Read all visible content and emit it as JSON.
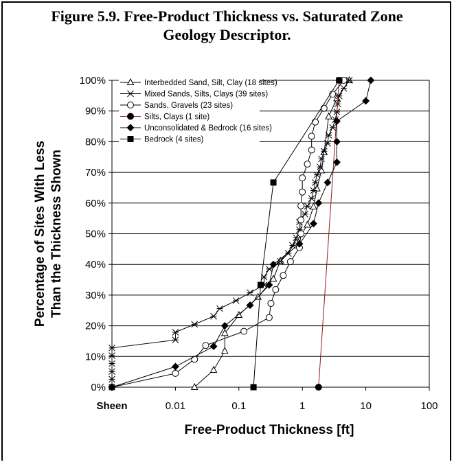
{
  "figure": {
    "title_line1": "Figure 5.9.  Free-Product Thickness vs. Saturated Zone",
    "title_line2": "Geology Descriptor."
  },
  "chart_data": {
    "type": "line",
    "xlabel": "Free-Product Thickness [ft]",
    "ylabel_line1": "Percentage of Sites With Less",
    "ylabel_line2": "Than the Thickness Shown",
    "x_scale": "log",
    "x_ticks": [
      {
        "value": 0.001,
        "label": "Sheen"
      },
      {
        "value": 0.01,
        "label": "0.01"
      },
      {
        "value": 0.1,
        "label": "0.1"
      },
      {
        "value": 1,
        "label": "1"
      },
      {
        "value": 10,
        "label": "10"
      },
      {
        "value": 100,
        "label": "100"
      }
    ],
    "xlim": [
      0.001,
      100
    ],
    "ylim": [
      0,
      100
    ],
    "y_ticks": [
      {
        "value": 0,
        "label": "0%"
      },
      {
        "value": 10,
        "label": "10%"
      },
      {
        "value": 20,
        "label": "20%"
      },
      {
        "value": 30,
        "label": "30%"
      },
      {
        "value": 40,
        "label": "40%"
      },
      {
        "value": 50,
        "label": "50%"
      },
      {
        "value": 60,
        "label": "60%"
      },
      {
        "value": 70,
        "label": "70%"
      },
      {
        "value": 80,
        "label": "80%"
      },
      {
        "value": 90,
        "label": "90%"
      },
      {
        "value": 100,
        "label": "100%"
      }
    ],
    "grid": "horizontal",
    "legend_position": "top-left",
    "series": [
      {
        "name": "Interbedded Sand, Silt, Clay (18 sites)",
        "marker": "open-triangle",
        "color": "#000000",
        "points": [
          [
            0.02,
            0
          ],
          [
            0.04,
            5.6
          ],
          [
            0.06,
            11.8
          ],
          [
            0.06,
            17.6
          ],
          [
            0.1,
            23.5
          ],
          [
            0.2,
            29.4
          ],
          [
            0.35,
            35.3
          ],
          [
            0.45,
            41.2
          ],
          [
            0.8,
            47.1
          ],
          [
            1.2,
            52.9
          ],
          [
            1.5,
            58.8
          ],
          [
            1.7,
            64.7
          ],
          [
            2.0,
            70.6
          ],
          [
            2.2,
            76.5
          ],
          [
            2.6,
            88.2
          ],
          [
            3.5,
            94.1
          ],
          [
            5.5,
            100
          ]
        ]
      },
      {
        "name": "Mixed Sands, Silts, Clays (39 sites)",
        "marker": "asterisk",
        "color": "#000000",
        "points": [
          [
            0.001,
            0
          ],
          [
            0.001,
            2.6
          ],
          [
            0.001,
            5.1
          ],
          [
            0.001,
            7.7
          ],
          [
            0.001,
            10.3
          ],
          [
            0.001,
            12.8
          ],
          [
            0.01,
            15.4
          ],
          [
            0.01,
            17.9
          ],
          [
            0.02,
            20.5
          ],
          [
            0.04,
            23.1
          ],
          [
            0.05,
            25.6
          ],
          [
            0.09,
            28.2
          ],
          [
            0.15,
            30.8
          ],
          [
            0.25,
            33.3
          ],
          [
            0.25,
            35.9
          ],
          [
            0.3,
            38.5
          ],
          [
            0.45,
            41.0
          ],
          [
            0.6,
            43.6
          ],
          [
            0.7,
            46.2
          ],
          [
            0.8,
            48.7
          ],
          [
            0.9,
            51.3
          ],
          [
            0.9,
            53.8
          ],
          [
            1.1,
            56.4
          ],
          [
            1.2,
            59.0
          ],
          [
            1.4,
            61.5
          ],
          [
            1.5,
            64.1
          ],
          [
            1.6,
            66.7
          ],
          [
            1.7,
            69.2
          ],
          [
            1.9,
            71.8
          ],
          [
            2.0,
            74.4
          ],
          [
            2.2,
            76.9
          ],
          [
            2.5,
            79.5
          ],
          [
            2.6,
            82.1
          ],
          [
            3.0,
            84.6
          ],
          [
            3.3,
            87.2
          ],
          [
            3.5,
            89.7
          ],
          [
            3.6,
            92.3
          ],
          [
            3.8,
            94.9
          ],
          [
            4.5,
            97.4
          ],
          [
            5.5,
            100
          ]
        ]
      },
      {
        "name": "Sands, Gravels (23 sites)",
        "marker": "open-circle",
        "color": "#000000",
        "points": [
          [
            0.001,
            0
          ],
          [
            0.01,
            4.5
          ],
          [
            0.02,
            9.1
          ],
          [
            0.03,
            13.6
          ],
          [
            0.12,
            18.2
          ],
          [
            0.3,
            22.7
          ],
          [
            0.32,
            27.3
          ],
          [
            0.38,
            31.8
          ],
          [
            0.5,
            36.4
          ],
          [
            0.65,
            40.9
          ],
          [
            0.9,
            45.5
          ],
          [
            0.95,
            50.0
          ],
          [
            0.95,
            54.5
          ],
          [
            0.95,
            59.1
          ],
          [
            1.0,
            63.6
          ],
          [
            1.0,
            68.2
          ],
          [
            1.2,
            72.7
          ],
          [
            1.4,
            77.3
          ],
          [
            1.4,
            81.8
          ],
          [
            1.6,
            86.4
          ],
          [
            2.2,
            90.9
          ],
          [
            3.0,
            95.5
          ],
          [
            4.5,
            100
          ]
        ]
      },
      {
        "name": "Silts, Clays (1 site)",
        "marker": "filled-circle",
        "color": "#8b1a1a",
        "points": [
          [
            1.8,
            0
          ],
          [
            3.8,
            100
          ]
        ]
      },
      {
        "name": "Unconsolidated & Bedrock (16 sites)",
        "marker": "filled-diamond",
        "color": "#000000",
        "points": [
          [
            0.001,
            0
          ],
          [
            0.01,
            6.7
          ],
          [
            0.04,
            13.3
          ],
          [
            0.06,
            20.0
          ],
          [
            0.15,
            26.7
          ],
          [
            0.3,
            33.3
          ],
          [
            0.35,
            40.0
          ],
          [
            0.9,
            46.7
          ],
          [
            1.5,
            53.3
          ],
          [
            1.8,
            60.0
          ],
          [
            2.5,
            66.7
          ],
          [
            3.5,
            73.3
          ],
          [
            3.5,
            80.0
          ],
          [
            3.5,
            86.7
          ],
          [
            10,
            93.3
          ],
          [
            12,
            100
          ]
        ]
      },
      {
        "name": "Bedrock (4 sites)",
        "marker": "filled-square",
        "color": "#000000",
        "points": [
          [
            0.17,
            0
          ],
          [
            0.22,
            33.3
          ],
          [
            0.35,
            66.7
          ],
          [
            3.8,
            100
          ]
        ]
      }
    ]
  }
}
